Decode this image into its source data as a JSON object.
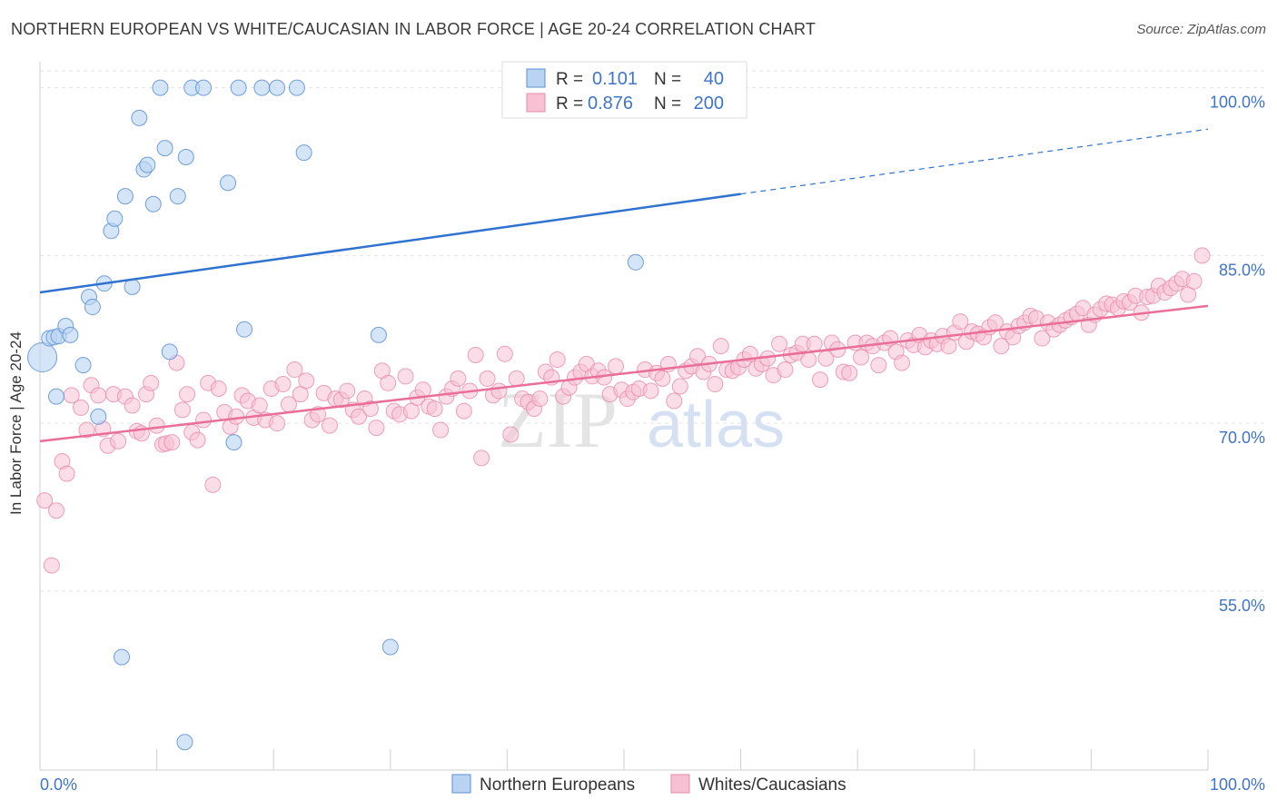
{
  "header": {
    "title": "NORTHERN EUROPEAN VS WHITE/CAUCASIAN IN LABOR FORCE | AGE 20-24 CORRELATION CHART",
    "source": "Source: ZipAtlas.com"
  },
  "watermark": {
    "part1": "ZIP",
    "part2": "atlas"
  },
  "colors": {
    "blue_fill": "#b9d3f3",
    "blue_stroke": "#5b8fd6",
    "blue_line": "#2f72cf",
    "pink_fill": "#f8c1d3",
    "pink_stroke": "#e889aa",
    "pink_line": "#e96f98",
    "tick_label": "#3f74c9",
    "grid": "#e3e3e3"
  },
  "chart_data": {
    "type": "scatter",
    "title": "NORTHERN EUROPEAN VS WHITE/CAUCASIAN IN LABOR FORCE | AGE 20-24 CORRELATION CHART",
    "xlabel": "",
    "ylabel": "In Labor Force | Age 20-24",
    "xlim": [
      0,
      100
    ],
    "ylim": [
      39,
      102
    ],
    "x_tick_labels": [
      {
        "value": 0,
        "label": "0.0%"
      },
      {
        "value": 100,
        "label": "100.0%"
      }
    ],
    "y_tick_labels": [
      {
        "value": 100,
        "label": "100.0%"
      },
      {
        "value": 85,
        "label": "85.0%"
      },
      {
        "value": 70,
        "label": "70.0%"
      },
      {
        "value": 55,
        "label": "55.0%"
      }
    ],
    "grid": true,
    "legend_position": "top-center",
    "stats": [
      {
        "r_label": "R =",
        "r": "0.101",
        "n_label": "N =",
        "n": "40"
      },
      {
        "r_label": "R =",
        "r": "0.876",
        "n_label": "N =",
        "n": "200"
      }
    ],
    "series": [
      {
        "name": "Northern Europeans",
        "trend": {
          "x0": 0,
          "y0": 81.7,
          "x1": 60,
          "y1": 90.5,
          "x_dash_end": 100,
          "y_dash_end": 96.3
        },
        "points": [
          [
            0.2,
            75.9
          ],
          [
            0.8,
            77.6
          ],
          [
            1.2,
            77.7
          ],
          [
            1.6,
            77.8
          ],
          [
            2.2,
            78.7
          ],
          [
            2.6,
            77.9
          ],
          [
            1.4,
            72.4
          ],
          [
            3.7,
            75.2
          ],
          [
            4.2,
            81.3
          ],
          [
            4.5,
            80.4
          ],
          [
            5.0,
            70.6
          ],
          [
            5.5,
            82.5
          ],
          [
            6.1,
            87.2
          ],
          [
            6.4,
            88.3
          ],
          [
            7.3,
            90.3
          ],
          [
            7.9,
            82.2
          ],
          [
            8.5,
            97.3
          ],
          [
            8.9,
            92.7
          ],
          [
            9.2,
            93.1
          ],
          [
            9.7,
            89.6
          ],
          [
            10.3,
            100.0
          ],
          [
            10.7,
            94.6
          ],
          [
            11.1,
            76.4
          ],
          [
            11.8,
            90.3
          ],
          [
            12.5,
            93.8
          ],
          [
            13.0,
            100.0
          ],
          [
            14.0,
            100.0
          ],
          [
            16.1,
            91.5
          ],
          [
            16.6,
            68.3
          ],
          [
            17.0,
            100.0
          ],
          [
            17.5,
            78.4
          ],
          [
            19.0,
            100.0
          ],
          [
            20.3,
            100.0
          ],
          [
            22.0,
            100.0
          ],
          [
            22.6,
            94.2
          ],
          [
            29.0,
            77.9
          ],
          [
            30.0,
            50.0
          ],
          [
            7.0,
            49.1
          ],
          [
            12.4,
            41.5
          ],
          [
            51.0,
            84.4
          ]
        ]
      },
      {
        "name": "Whites/Caucasians",
        "trend": {
          "x0": 0,
          "y0": 68.4,
          "x1": 100,
          "y1": 80.5
        },
        "points": [
          [
            0.4,
            63.1
          ],
          [
            1.0,
            57.3
          ],
          [
            1.4,
            62.2
          ],
          [
            1.9,
            66.6
          ],
          [
            2.3,
            65.5
          ],
          [
            2.7,
            72.5
          ],
          [
            3.5,
            71.4
          ],
          [
            4.0,
            69.4
          ],
          [
            4.4,
            73.4
          ],
          [
            5.0,
            72.5
          ],
          [
            5.4,
            69.5
          ],
          [
            5.8,
            68.0
          ],
          [
            6.3,
            72.6
          ],
          [
            6.7,
            68.4
          ],
          [
            7.3,
            72.4
          ],
          [
            7.9,
            71.6
          ],
          [
            8.3,
            69.3
          ],
          [
            8.7,
            69.1
          ],
          [
            9.1,
            72.6
          ],
          [
            9.5,
            73.6
          ],
          [
            10.0,
            69.8
          ],
          [
            10.5,
            68.1
          ],
          [
            10.8,
            68.2
          ],
          [
            11.3,
            68.3
          ],
          [
            11.7,
            75.4
          ],
          [
            12.2,
            71.2
          ],
          [
            12.6,
            72.6
          ],
          [
            13.0,
            69.2
          ],
          [
            13.5,
            68.5
          ],
          [
            14.0,
            70.3
          ],
          [
            14.4,
            73.6
          ],
          [
            14.8,
            64.5
          ],
          [
            15.3,
            73.1
          ],
          [
            15.8,
            71.0
          ],
          [
            16.3,
            69.7
          ],
          [
            16.8,
            70.6
          ],
          [
            17.3,
            72.5
          ],
          [
            17.8,
            72.0
          ],
          [
            18.3,
            70.5
          ],
          [
            18.8,
            71.6
          ],
          [
            19.3,
            70.3
          ],
          [
            19.8,
            73.1
          ],
          [
            20.3,
            70.0
          ],
          [
            20.8,
            73.5
          ],
          [
            21.3,
            71.7
          ],
          [
            21.8,
            74.8
          ],
          [
            22.3,
            72.6
          ],
          [
            22.8,
            73.8
          ],
          [
            23.3,
            70.3
          ],
          [
            23.8,
            70.8
          ],
          [
            24.3,
            72.7
          ],
          [
            24.8,
            69.8
          ],
          [
            25.3,
            72.2
          ],
          [
            25.8,
            72.1
          ],
          [
            26.3,
            72.9
          ],
          [
            26.8,
            71.2
          ],
          [
            27.3,
            70.6
          ],
          [
            27.8,
            72.2
          ],
          [
            28.3,
            71.3
          ],
          [
            28.8,
            69.6
          ],
          [
            29.3,
            74.7
          ],
          [
            29.8,
            73.6
          ],
          [
            30.3,
            71.1
          ],
          [
            30.8,
            70.8
          ],
          [
            31.3,
            74.2
          ],
          [
            31.8,
            71.1
          ],
          [
            32.3,
            72.3
          ],
          [
            32.8,
            73.0
          ],
          [
            33.3,
            71.5
          ],
          [
            33.8,
            71.3
          ],
          [
            34.3,
            69.4
          ],
          [
            34.8,
            72.4
          ],
          [
            35.3,
            73.1
          ],
          [
            35.8,
            74.0
          ],
          [
            36.3,
            71.1
          ],
          [
            36.8,
            72.9
          ],
          [
            37.3,
            76.1
          ],
          [
            37.8,
            66.9
          ],
          [
            38.3,
            74.0
          ],
          [
            38.8,
            72.5
          ],
          [
            39.3,
            72.9
          ],
          [
            39.8,
            76.2
          ],
          [
            40.3,
            69.0
          ],
          [
            40.8,
            74.0
          ],
          [
            41.3,
            72.2
          ],
          [
            41.8,
            71.9
          ],
          [
            42.3,
            71.3
          ],
          [
            42.8,
            72.2
          ],
          [
            43.3,
            74.6
          ],
          [
            43.8,
            74.1
          ],
          [
            44.3,
            75.7
          ],
          [
            44.8,
            72.4
          ],
          [
            45.3,
            73.2
          ],
          [
            45.8,
            74.1
          ],
          [
            46.3,
            74.6
          ],
          [
            46.8,
            75.3
          ],
          [
            47.3,
            74.2
          ],
          [
            47.8,
            74.7
          ],
          [
            48.3,
            74.1
          ],
          [
            48.8,
            72.6
          ],
          [
            49.3,
            75.1
          ],
          [
            49.8,
            73.0
          ],
          [
            50.3,
            72.2
          ],
          [
            50.8,
            72.8
          ],
          [
            51.3,
            73.1
          ],
          [
            51.8,
            74.8
          ],
          [
            52.3,
            72.9
          ],
          [
            52.8,
            74.5
          ],
          [
            53.3,
            74.0
          ],
          [
            53.8,
            75.3
          ],
          [
            54.3,
            72.0
          ],
          [
            54.8,
            73.3
          ],
          [
            55.3,
            74.7
          ],
          [
            55.8,
            75.1
          ],
          [
            56.3,
            76.0
          ],
          [
            56.8,
            74.6
          ],
          [
            57.3,
            75.3
          ],
          [
            57.8,
            73.5
          ],
          [
            58.3,
            76.9
          ],
          [
            58.8,
            74.8
          ],
          [
            59.3,
            74.7
          ],
          [
            59.8,
            75.0
          ],
          [
            60.3,
            75.7
          ],
          [
            60.8,
            76.2
          ],
          [
            61.3,
            74.9
          ],
          [
            61.8,
            75.3
          ],
          [
            62.3,
            75.8
          ],
          [
            62.8,
            74.3
          ],
          [
            63.3,
            77.1
          ],
          [
            63.8,
            74.8
          ],
          [
            64.3,
            76.1
          ],
          [
            64.8,
            76.3
          ],
          [
            65.3,
            77.1
          ],
          [
            65.8,
            75.7
          ],
          [
            66.3,
            77.1
          ],
          [
            66.8,
            73.9
          ],
          [
            67.3,
            75.8
          ],
          [
            67.8,
            77.2
          ],
          [
            68.3,
            76.6
          ],
          [
            68.8,
            74.6
          ],
          [
            69.3,
            74.5
          ],
          [
            69.8,
            77.2
          ],
          [
            70.3,
            75.9
          ],
          [
            70.8,
            77.2
          ],
          [
            71.3,
            76.9
          ],
          [
            71.8,
            75.2
          ],
          [
            72.3,
            77.2
          ],
          [
            72.8,
            77.6
          ],
          [
            73.3,
            76.4
          ],
          [
            73.8,
            75.4
          ],
          [
            74.3,
            77.4
          ],
          [
            74.8,
            77.0
          ],
          [
            75.3,
            77.9
          ],
          [
            75.8,
            76.8
          ],
          [
            76.3,
            77.4
          ],
          [
            76.8,
            77.1
          ],
          [
            77.3,
            77.8
          ],
          [
            77.8,
            76.9
          ],
          [
            78.3,
            78.1
          ],
          [
            78.8,
            79.1
          ],
          [
            79.3,
            77.3
          ],
          [
            79.8,
            78.2
          ],
          [
            80.3,
            78.0
          ],
          [
            80.8,
            77.7
          ],
          [
            81.3,
            78.6
          ],
          [
            81.8,
            79.0
          ],
          [
            82.3,
            76.9
          ],
          [
            82.8,
            78.2
          ],
          [
            83.3,
            77.7
          ],
          [
            83.8,
            78.7
          ],
          [
            84.3,
            79.0
          ],
          [
            84.8,
            79.6
          ],
          [
            85.3,
            79.4
          ],
          [
            85.8,
            77.6
          ],
          [
            86.3,
            79.0
          ],
          [
            86.8,
            78.4
          ],
          [
            87.3,
            78.8
          ],
          [
            87.8,
            79.2
          ],
          [
            88.3,
            79.5
          ],
          [
            88.8,
            79.8
          ],
          [
            89.3,
            80.3
          ],
          [
            89.8,
            78.8
          ],
          [
            90.3,
            79.7
          ],
          [
            90.8,
            80.2
          ],
          [
            91.3,
            80.7
          ],
          [
            91.8,
            80.6
          ],
          [
            92.3,
            80.3
          ],
          [
            92.8,
            80.9
          ],
          [
            93.3,
            80.8
          ],
          [
            93.8,
            81.4
          ],
          [
            94.3,
            79.9
          ],
          [
            94.8,
            81.3
          ],
          [
            95.3,
            81.4
          ],
          [
            95.8,
            82.3
          ],
          [
            96.3,
            81.7
          ],
          [
            96.8,
            82.1
          ],
          [
            97.3,
            82.5
          ],
          [
            97.8,
            82.9
          ],
          [
            98.3,
            81.5
          ],
          [
            98.8,
            82.7
          ],
          [
            99.5,
            85.0
          ]
        ]
      }
    ]
  }
}
